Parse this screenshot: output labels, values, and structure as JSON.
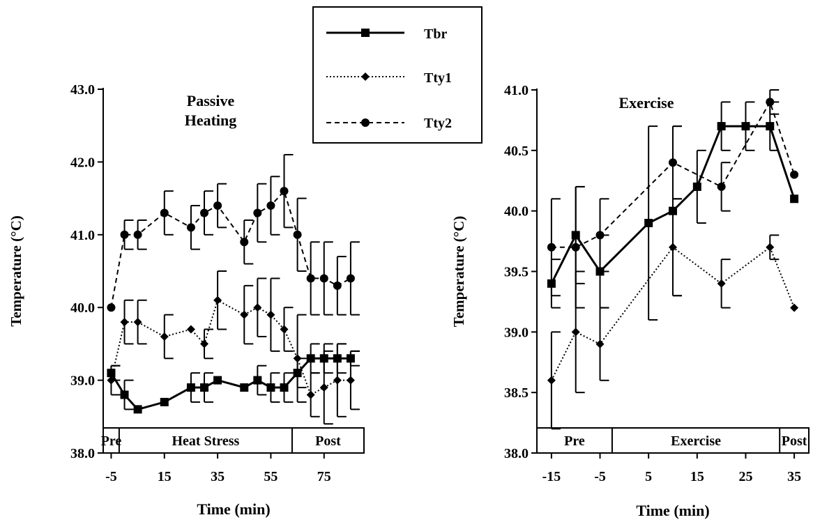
{
  "legend": {
    "entries": [
      {
        "label": "Tbr",
        "style": "solid",
        "marker": "square"
      },
      {
        "label": "Tty1",
        "style": "dotted",
        "marker": "diamond"
      },
      {
        "label": "Tty2",
        "style": "dashed",
        "marker": "circle"
      }
    ]
  },
  "chart_data": [
    {
      "type": "line",
      "title": "Passive Heating",
      "xlabel": "Time (min)",
      "ylabel": "Temperature (°C)",
      "xlim": [
        -8,
        90
      ],
      "ylim": [
        38.0,
        43.0
      ],
      "xticks": [
        -5,
        15,
        35,
        55,
        75
      ],
      "xtick_labels": [
        "-5",
        "15",
        "35",
        "55",
        "75"
      ],
      "yticks": [
        38.0,
        39.0,
        40.0,
        41.0,
        42.0,
        43.0
      ],
      "ytick_labels": [
        "38.0",
        "39.0",
        "40.0",
        "41.0",
        "42.0",
        "43.0"
      ],
      "grid": false,
      "legend_position": "top-center",
      "phases": [
        {
          "label": "Pre",
          "start": -8,
          "end": -2
        },
        {
          "label": "Heat Stress",
          "start": -2,
          "end": 63
        },
        {
          "label": "Post",
          "start": 63,
          "end": 90
        }
      ],
      "series": [
        {
          "name": "Tbr",
          "style": "solid",
          "marker": "square",
          "x": [
            -5,
            0,
            5,
            15,
            25,
            30,
            35,
            45,
            50,
            55,
            60,
            65,
            70,
            75,
            80,
            85
          ],
          "y": [
            39.1,
            38.8,
            38.6,
            38.7,
            38.9,
            38.9,
            39.0,
            38.9,
            39.0,
            38.9,
            38.9,
            39.1,
            39.3,
            39.3,
            39.3,
            39.3
          ],
          "err": [
            0.1,
            0.2,
            0.0,
            0.0,
            0.2,
            0.2,
            0.0,
            0.0,
            0.2,
            0.2,
            0.2,
            0.2,
            0.2,
            0.2,
            0.2,
            0.1
          ]
        },
        {
          "name": "Tty1",
          "style": "dotted",
          "marker": "diamond",
          "x": [
            -5,
            0,
            5,
            15,
            25,
            30,
            35,
            45,
            50,
            55,
            60,
            65,
            70,
            75,
            80,
            85
          ],
          "y": [
            39.0,
            39.8,
            39.8,
            39.6,
            39.7,
            39.5,
            40.1,
            39.9,
            40.0,
            39.9,
            39.7,
            39.3,
            38.8,
            38.9,
            39.0,
            39.0
          ],
          "err": [
            0.2,
            0.3,
            0.3,
            0.3,
            0.0,
            0.2,
            0.4,
            0.4,
            0.4,
            0.5,
            0.3,
            0.6,
            0.3,
            0.5,
            0.5,
            0.4
          ]
        },
        {
          "name": "Tty2",
          "style": "dashed",
          "marker": "circle",
          "x": [
            -5,
            0,
            5,
            15,
            25,
            30,
            35,
            45,
            50,
            55,
            60,
            65,
            70,
            75,
            80,
            85
          ],
          "y": [
            40.0,
            41.0,
            41.0,
            41.3,
            41.1,
            41.3,
            41.4,
            40.9,
            41.3,
            41.4,
            41.6,
            41.0,
            40.4,
            40.4,
            40.3,
            40.4
          ],
          "err": [
            0.0,
            0.2,
            0.2,
            0.3,
            0.3,
            0.3,
            0.3,
            0.3,
            0.4,
            0.4,
            0.5,
            0.5,
            0.5,
            0.5,
            0.4,
            0.5
          ]
        }
      ]
    },
    {
      "type": "line",
      "title": "Exercise",
      "xlabel": "Time (min)",
      "ylabel": "Temperature (°C)",
      "xlim": [
        -18,
        38
      ],
      "ylim": [
        38.0,
        41.0
      ],
      "xticks": [
        -15,
        -5,
        5,
        15,
        25,
        35
      ],
      "xtick_labels": [
        "-15",
        "-5",
        "5",
        "15",
        "25",
        "35"
      ],
      "yticks": [
        38.0,
        38.5,
        39.0,
        39.5,
        40.0,
        40.5,
        41.0
      ],
      "ytick_labels": [
        "38.0",
        "38.5",
        "39.0",
        "39.5",
        "40.0",
        "40.5",
        "41.0"
      ],
      "grid": false,
      "phases": [
        {
          "label": "Pre",
          "start": -18,
          "end": -2.5
        },
        {
          "label": "Exercise",
          "start": -2.5,
          "end": 32
        },
        {
          "label": "Post",
          "start": 32,
          "end": 38
        }
      ],
      "series": [
        {
          "name": "Tbr",
          "style": "solid",
          "marker": "square",
          "x": [
            -15,
            -10,
            -5,
            5,
            10,
            15,
            20,
            25,
            30,
            35
          ],
          "y": [
            39.4,
            39.8,
            39.5,
            39.9,
            40.0,
            40.2,
            40.7,
            40.7,
            40.7,
            40.1
          ],
          "err": [
            0.2,
            0.4,
            0.3,
            0.8,
            0.7,
            0.3,
            0.2,
            0.2,
            0.2,
            0.0
          ]
        },
        {
          "name": "Tty1",
          "style": "dotted",
          "marker": "diamond",
          "x": [
            -15,
            -10,
            -5,
            10,
            20,
            30,
            35
          ],
          "y": [
            38.6,
            39.0,
            38.9,
            39.7,
            39.4,
            39.7,
            39.2
          ],
          "err": [
            0.4,
            0.5,
            0.3,
            0.4,
            0.2,
            0.1,
            0.0
          ]
        },
        {
          "name": "Tty2",
          "style": "dashed",
          "marker": "circle",
          "x": [
            -15,
            -10,
            -5,
            10,
            20,
            30,
            35
          ],
          "y": [
            39.7,
            39.7,
            39.8,
            40.4,
            40.2,
            40.9,
            40.3
          ],
          "err": [
            0.4,
            0.5,
            0.3,
            0.3,
            0.2,
            0.1,
            0.0
          ]
        }
      ]
    }
  ]
}
